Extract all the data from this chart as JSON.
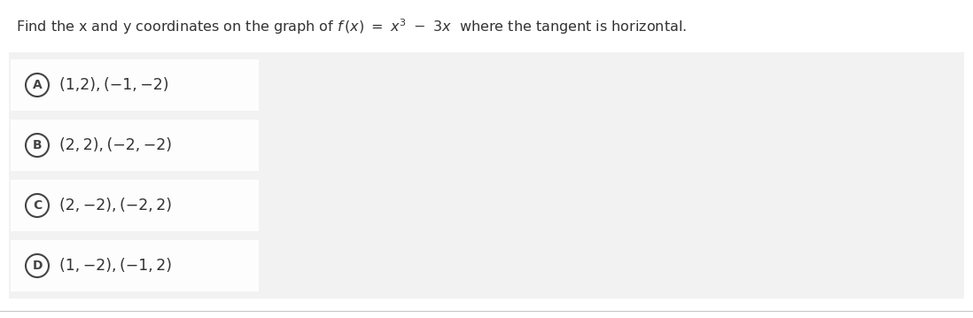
{
  "question_pre": "Find the x and y coordinates on the graph of ",
  "question_formula": "f (x) = x³ – 3x",
  "question_post": " where the tangent is horizontal.",
  "options": [
    {
      "letter": "A",
      "text": "(1,2), (−1, −2)"
    },
    {
      "letter": "B",
      "text": "(2, 2), (−2, −2)"
    },
    {
      "letter": "C",
      "text": "(2, −2), (−2, 2)"
    },
    {
      "letter": "D",
      "text": "(1, −2), (−1, 2)"
    }
  ],
  "bg_outer": "#f2f2f2",
  "bg_row": "#e9e9e9",
  "bg_white": "#ffffff",
  "text_color": "#333333",
  "circle_edge_color": "#444444",
  "font_size_q": 11.5,
  "font_size_opt": 12.5,
  "bottom_line_color": "#c8c8c8",
  "fig_bg": "#ffffff"
}
